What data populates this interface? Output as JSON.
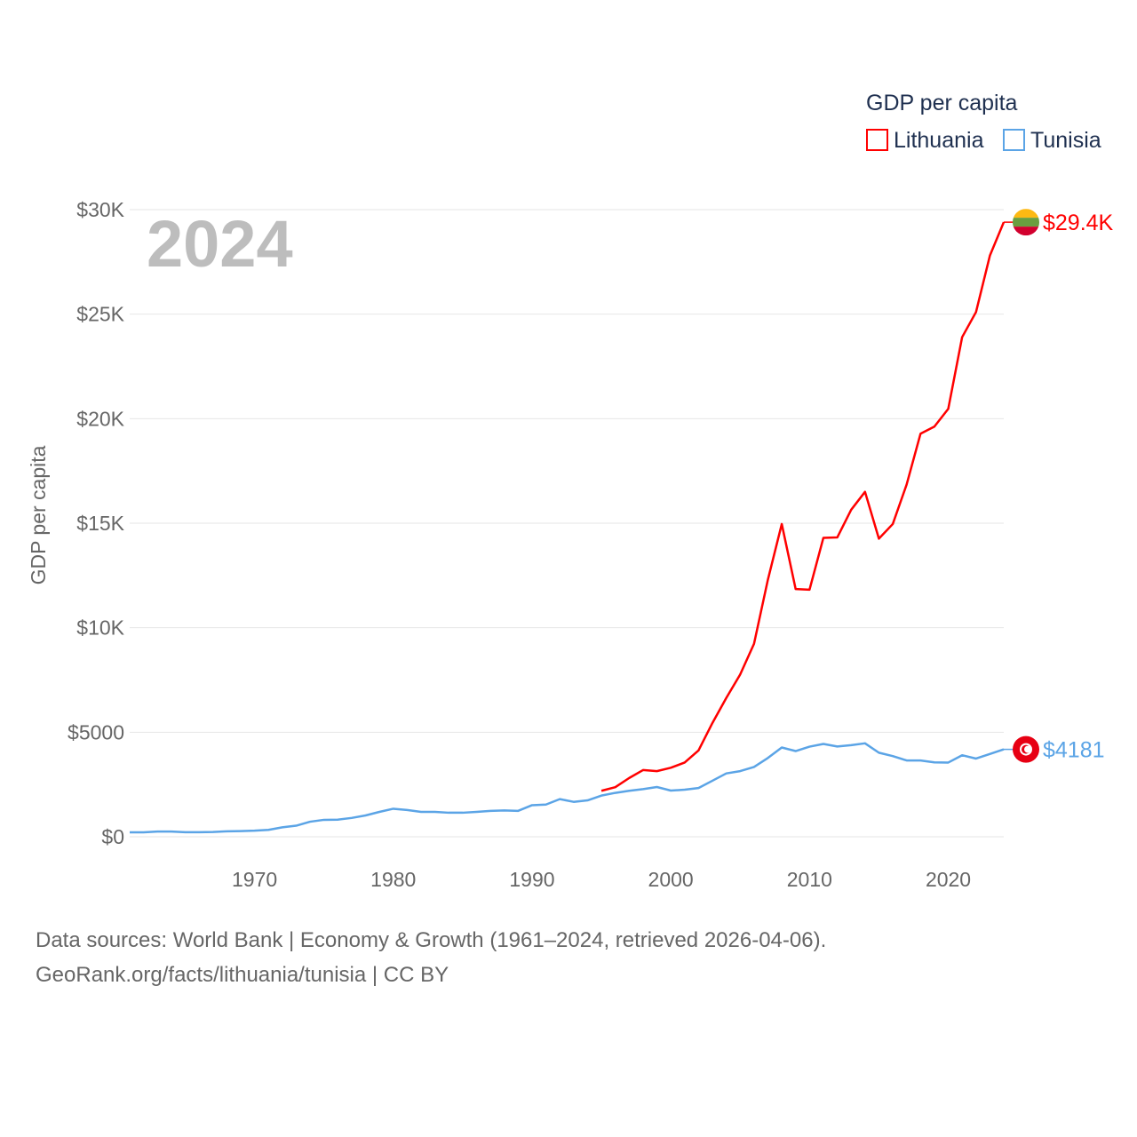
{
  "chart_data": {
    "type": "line",
    "title": "GDP per capita",
    "ylabel": "GDP per capita",
    "year_label": "2024",
    "xlim": [
      1961,
      2024
    ],
    "ylim": [
      0,
      30000
    ],
    "xticks": [
      1970,
      1980,
      1990,
      2000,
      2010,
      2020
    ],
    "xtick_labels": [
      "1970",
      "1980",
      "1990",
      "2000",
      "2010",
      "2020"
    ],
    "yticks": [
      0,
      5000,
      10000,
      15000,
      20000,
      25000,
      30000
    ],
    "ytick_labels": [
      "$0",
      "$5000",
      "$10K",
      "$15K",
      "$20K",
      "$25K",
      "$30K"
    ],
    "grid": true,
    "legend_position": "top-right",
    "series": [
      {
        "name": "Lithuania",
        "color": "#ff0000",
        "end_label": "$29.4K",
        "start": 1995,
        "values": [
          2200,
          2370,
          2810,
          3190,
          3140,
          3300,
          3550,
          4130,
          5440,
          6640,
          7760,
          9230,
          12300,
          14960,
          11850,
          11820,
          14300,
          14320,
          15640,
          16500,
          14260,
          14960,
          16850,
          19280,
          19620,
          20470,
          23900,
          25100,
          27800,
          29400
        ]
      },
      {
        "name": "Tunisia",
        "color": "#5ba4e6",
        "end_label": "$4181",
        "start": 1961,
        "values": [
          210,
          210,
          250,
          250,
          220,
          220,
          230,
          260,
          270,
          290,
          330,
          450,
          530,
          720,
          810,
          820,
          900,
          1020,
          1190,
          1340,
          1280,
          1190,
          1190,
          1150,
          1150,
          1190,
          1240,
          1260,
          1240,
          1510,
          1540,
          1800,
          1670,
          1740,
          1970,
          2100,
          2200,
          2280,
          2380,
          2210,
          2250,
          2330,
          2680,
          3030,
          3140,
          3340,
          3770,
          4270,
          4100,
          4310,
          4440,
          4320,
          4380,
          4470,
          4020,
          3860,
          3650,
          3650,
          3560,
          3550,
          3900,
          3740,
          3960,
          4181
        ]
      }
    ]
  },
  "footer": {
    "line1": "Data sources: World Bank | Economy & Growth (1961–2024, retrieved 2026-04-06).",
    "line2": "GeoRank.org/facts/lithuania/tunisia | CC BY"
  }
}
